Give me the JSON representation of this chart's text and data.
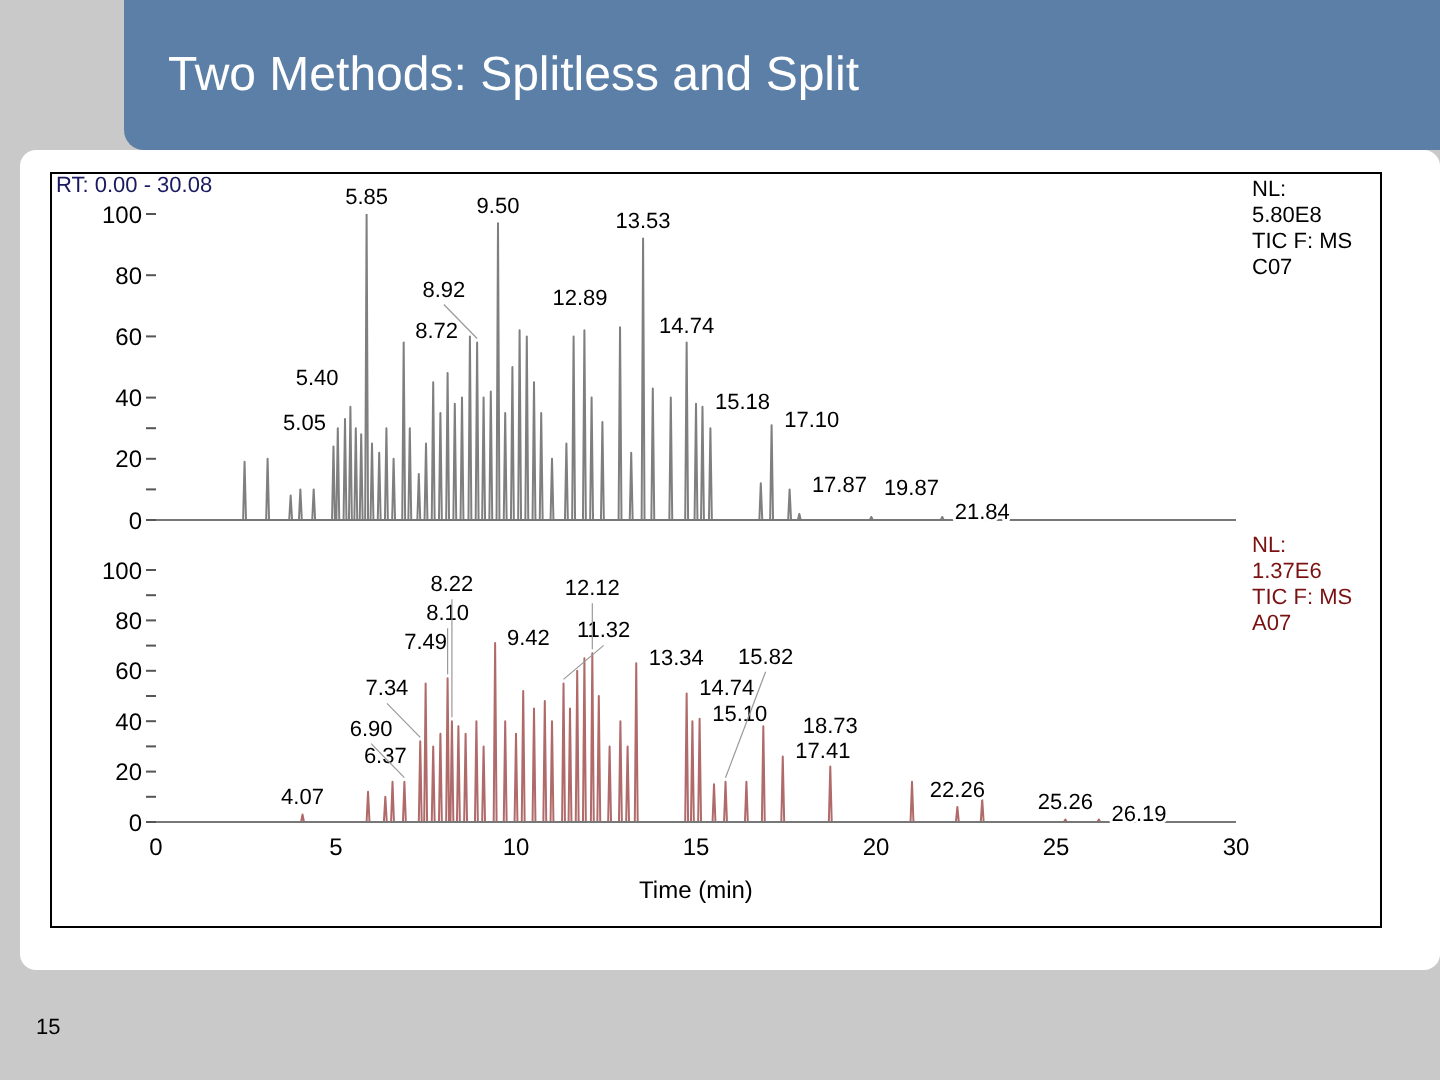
{
  "chart_data": [
    {
      "type": "line",
      "title": "Two Methods: Splitless and Split",
      "xlim": [
        0,
        30
      ],
      "ylim": [
        0,
        100
      ],
      "yticks": [
        0,
        {
          "value": 10,
          "label": null
        },
        20,
        {
          "value": 30,
          "label": null
        },
        40,
        60,
        80,
        100
      ],
      "tick_labels": "y",
      "grid": false,
      "marker": "none",
      "series": [
        {
          "color": "#7f7f7f",
          "x": [
            0,
            2.42,
            2.46,
            2.5,
            3.06,
            3.1,
            3.14,
            3.7,
            3.74,
            3.78,
            3.97,
            4.01,
            4.05,
            4.34,
            4.38,
            4.42,
            4.89,
            4.93,
            4.97,
            5.01,
            5.05,
            5.09,
            5.21,
            5.25,
            5.29,
            5.36,
            5.4,
            5.44,
            5.51,
            5.55,
            5.59,
            5.66,
            5.7,
            5.74,
            5.81,
            5.85,
            5.89,
            5.96,
            6,
            6.04,
            6.16,
            6.2,
            6.24,
            6.36,
            6.4,
            6.44,
            6.56,
            6.6,
            6.64,
            6.84,
            6.88,
            6.92,
            7.01,
            7.05,
            7.09,
            7.26,
            7.3,
            7.34,
            7.46,
            7.5,
            7.54,
            7.66,
            7.7,
            7.74,
            7.86,
            7.9,
            7.94,
            8.06,
            8.1,
            8.14,
            8.26,
            8.3,
            8.34,
            8.46,
            8.5,
            8.54,
            8.68,
            8.72,
            8.76,
            8.88,
            8.92,
            8.96,
            9.06,
            9.1,
            9.14,
            9.26,
            9.3,
            9.34,
            9.46,
            9.5,
            9.54,
            9.66,
            9.7,
            9.74,
            9.86,
            9.9,
            9.94,
            10.06,
            10.1,
            10.14,
            10.26,
            10.3,
            10.34,
            10.46,
            10.5,
            10.54,
            10.66,
            10.7,
            10.74,
            10.96,
            11,
            11.04,
            11.36,
            11.4,
            11.44,
            11.56,
            11.6,
            11.64,
            11.86,
            11.9,
            11.94,
            12.06,
            12.1,
            12.14,
            12.36,
            12.4,
            12.44,
            12.85,
            12.89,
            12.93,
            13.16,
            13.2,
            13.24,
            13.49,
            13.53,
            13.57,
            13.76,
            13.8,
            13.84,
            14.26,
            14.3,
            14.34,
            14.7,
            14.74,
            14.78,
            14.96,
            15,
            15.04,
            15.14,
            15.18,
            15.22,
            15.36,
            15.4,
            15.44,
            16.76,
            16.8,
            16.84,
            17.06,
            17.1,
            17.14,
            17.56,
            17.6,
            17.64,
            17.83,
            17.87,
            17.91,
            19.83,
            19.87,
            19.91,
            21.8,
            21.84,
            21.88,
            30
          ],
          "values": [
            0,
            0,
            19,
            0,
            0,
            20,
            0,
            0,
            8,
            0,
            0,
            10,
            0,
            0,
            10,
            0,
            0,
            24,
            0,
            0,
            30,
            0,
            0,
            33,
            0,
            0,
            37,
            0,
            0,
            30,
            0,
            0,
            28,
            0,
            0,
            100,
            0,
            0,
            25,
            0,
            0,
            22,
            0,
            0,
            30,
            0,
            0,
            20,
            0,
            0,
            58,
            0,
            0,
            30,
            0,
            0,
            15,
            0,
            0,
            25,
            0,
            0,
            45,
            0,
            0,
            35,
            0,
            0,
            48,
            0,
            0,
            38,
            0,
            0,
            40,
            0,
            0,
            60,
            0,
            0,
            58,
            0,
            0,
            40,
            0,
            0,
            42,
            0,
            0,
            97,
            0,
            0,
            35,
            0,
            0,
            50,
            0,
            0,
            62,
            0,
            0,
            60,
            0,
            0,
            45,
            0,
            0,
            35,
            0,
            0,
            20,
            0,
            0,
            25,
            0,
            0,
            60,
            0,
            0,
            62,
            0,
            0,
            40,
            0,
            0,
            32,
            0,
            0,
            63,
            0,
            0,
            22,
            0,
            0,
            92,
            0,
            0,
            43,
            0,
            0,
            40,
            0,
            0,
            58,
            0,
            0,
            38,
            0,
            0,
            37,
            0,
            0,
            30,
            0,
            0,
            12,
            0,
            0,
            31,
            0,
            0,
            10,
            0,
            0,
            2,
            0,
            0,
            1,
            0,
            0,
            1,
            0,
            0
          ]
        }
      ],
      "annotations": [
        "RT: 0.00 - 30.08",
        "NL:",
        "5.80E8",
        "TIC F: MS",
        "C07",
        {
          "text": "5.05",
          "x": 5.05,
          "y": 30
        },
        {
          "text": "5.40",
          "x": 5.4,
          "y": 37
        },
        {
          "text": "5.85",
          "x": 5.85,
          "y": 100
        },
        {
          "text": "8.72",
          "x": 8.72,
          "y": 60
        },
        {
          "text": "8.92",
          "x": 8.92,
          "y": 58
        },
        {
          "text": "9.50",
          "x": 9.5,
          "y": 97
        },
        {
          "text": "12.89",
          "x": 12.89,
          "y": 63
        },
        {
          "text": "13.53",
          "x": 13.53,
          "y": 92
        },
        {
          "text": "14.74",
          "x": 14.74,
          "y": 58
        },
        {
          "text": "15.18",
          "x": 15.18,
          "y": 37
        },
        {
          "text": "17.10",
          "x": 17.1,
          "y": 31
        },
        {
          "text": "17.87",
          "x": 17.87,
          "y": 2
        },
        {
          "text": "19.87",
          "x": 19.87,
          "y": 1
        },
        {
          "text": "21.84",
          "x": 21.84,
          "y": 1
        }
      ]
    },
    {
      "type": "line",
      "xlabel": "Time (min)",
      "xlim": [
        0,
        30
      ],
      "xticks": [
        0,
        5,
        10,
        15,
        20,
        25,
        30
      ],
      "ylim": [
        0,
        100
      ],
      "yticks": [
        0,
        {
          "value": 10,
          "label": null
        },
        20,
        {
          "value": 30,
          "label": null
        },
        40,
        {
          "value": 50,
          "label": null
        },
        60,
        {
          "value": 70,
          "label": null
        },
        80,
        {
          "value": 90,
          "label": null
        },
        100
      ],
      "grid": false,
      "marker": "none",
      "series": [
        {
          "color": "#b06a6a",
          "x": [
            0,
            4.03,
            4.07,
            4.11,
            5.85,
            5.89,
            5.93,
            6.33,
            6.37,
            6.41,
            6.53,
            6.57,
            6.61,
            6.86,
            6.9,
            6.94,
            7.3,
            7.34,
            7.38,
            7.45,
            7.49,
            7.53,
            7.66,
            7.7,
            7.74,
            7.86,
            7.9,
            7.94,
            8.06,
            8.1,
            8.14,
            8.18,
            8.22,
            8.26,
            8.36,
            8.4,
            8.44,
            8.56,
            8.6,
            8.64,
            8.86,
            8.9,
            8.94,
            9.06,
            9.1,
            9.14,
            9.38,
            9.42,
            9.46,
            9.66,
            9.7,
            9.74,
            9.96,
            10,
            10.04,
            10.16,
            10.2,
            10.24,
            10.46,
            10.5,
            10.54,
            10.76,
            10.8,
            10.84,
            10.96,
            11,
            11.04,
            11.28,
            11.32,
            11.36,
            11.46,
            11.5,
            11.54,
            11.66,
            11.7,
            11.74,
            11.86,
            11.9,
            11.94,
            12.08,
            12.12,
            12.16,
            12.26,
            12.3,
            12.34,
            12.56,
            12.6,
            12.64,
            12.86,
            12.9,
            12.94,
            13.06,
            13.1,
            13.14,
            13.3,
            13.34,
            13.38,
            14.7,
            14.74,
            14.78,
            14.86,
            14.9,
            14.94,
            15.06,
            15.1,
            15.14,
            15.46,
            15.5,
            15.54,
            15.78,
            15.82,
            15.86,
            16.36,
            16.4,
            16.44,
            16.83,
            16.87,
            16.91,
            17.37,
            17.41,
            17.45,
            18.69,
            18.73,
            18.77,
            20.96,
            21,
            21.04,
            22.22,
            22.26,
            22.3,
            22.91,
            22.95,
            22.99,
            25.22,
            25.26,
            25.3,
            26.15,
            26.19,
            26.23,
            30
          ],
          "values": [
            0,
            0,
            3,
            0,
            0,
            12,
            0,
            0,
            10,
            0,
            0,
            16,
            0,
            0,
            16,
            0,
            0,
            32,
            0,
            0,
            55,
            0,
            0,
            30,
            0,
            0,
            35,
            0,
            0,
            57,
            0,
            0,
            40,
            0,
            0,
            38,
            0,
            0,
            35,
            0,
            0,
            40,
            0,
            0,
            30,
            0,
            0,
            71,
            0,
            0,
            40,
            0,
            0,
            35,
            0,
            0,
            52,
            0,
            0,
            45,
            0,
            0,
            48,
            0,
            0,
            40,
            0,
            0,
            55,
            0,
            0,
            45,
            0,
            0,
            60,
            0,
            0,
            65,
            0,
            0,
            67,
            0,
            0,
            50,
            0,
            0,
            30,
            0,
            0,
            40,
            0,
            0,
            30,
            0,
            0,
            63,
            0,
            0,
            51,
            0,
            0,
            40,
            0,
            0,
            41,
            0,
            0,
            15,
            0,
            0,
            16,
            0,
            0,
            16,
            0,
            0,
            38,
            0,
            0,
            26,
            0,
            0,
            22,
            0,
            0,
            16,
            0,
            0,
            6,
            0,
            0,
            9,
            0,
            0,
            1,
            0,
            0,
            1,
            0,
            0
          ]
        }
      ],
      "annotations": [
        "NL:",
        "1.37E6",
        "TIC F: MS",
        "A07",
        "15",
        {
          "text": "4.07",
          "x": 4.07,
          "y": 3
        },
        {
          "text": "6.37",
          "x": 6.37,
          "y": 10
        },
        {
          "text": "6.90",
          "x": 6.9,
          "y": 16
        },
        {
          "text": "7.34",
          "x": 7.34,
          "y": 32
        },
        {
          "text": "7.49",
          "x": 7.49,
          "y": 55
        },
        {
          "text": "8.10",
          "x": 8.1,
          "y": 57
        },
        {
          "text": "8.22",
          "x": 8.22,
          "y": 40
        },
        {
          "text": "9.42",
          "x": 9.42,
          "y": 71
        },
        {
          "text": "11.32",
          "x": 11.32,
          "y": 55
        },
        {
          "text": "12.12",
          "x": 12.12,
          "y": 67
        },
        {
          "text": "13.34",
          "x": 13.34,
          "y": 63
        },
        {
          "text": "14.74",
          "x": 14.74,
          "y": 51
        },
        {
          "text": "15.10",
          "x": 15.1,
          "y": 41
        },
        {
          "text": "15.82",
          "x": 15.82,
          "y": 16
        },
        {
          "text": "17.41",
          "x": 17.41,
          "y": 26
        },
        {
          "text": "18.73",
          "x": 18.73,
          "y": 22
        },
        {
          "text": "22.26",
          "x": 22.26,
          "y": 6
        },
        {
          "text": "25.26",
          "x": 25.26,
          "y": 1
        },
        {
          "text": "26.19",
          "x": 26.19,
          "y": 1
        }
      ]
    }
  ]
}
